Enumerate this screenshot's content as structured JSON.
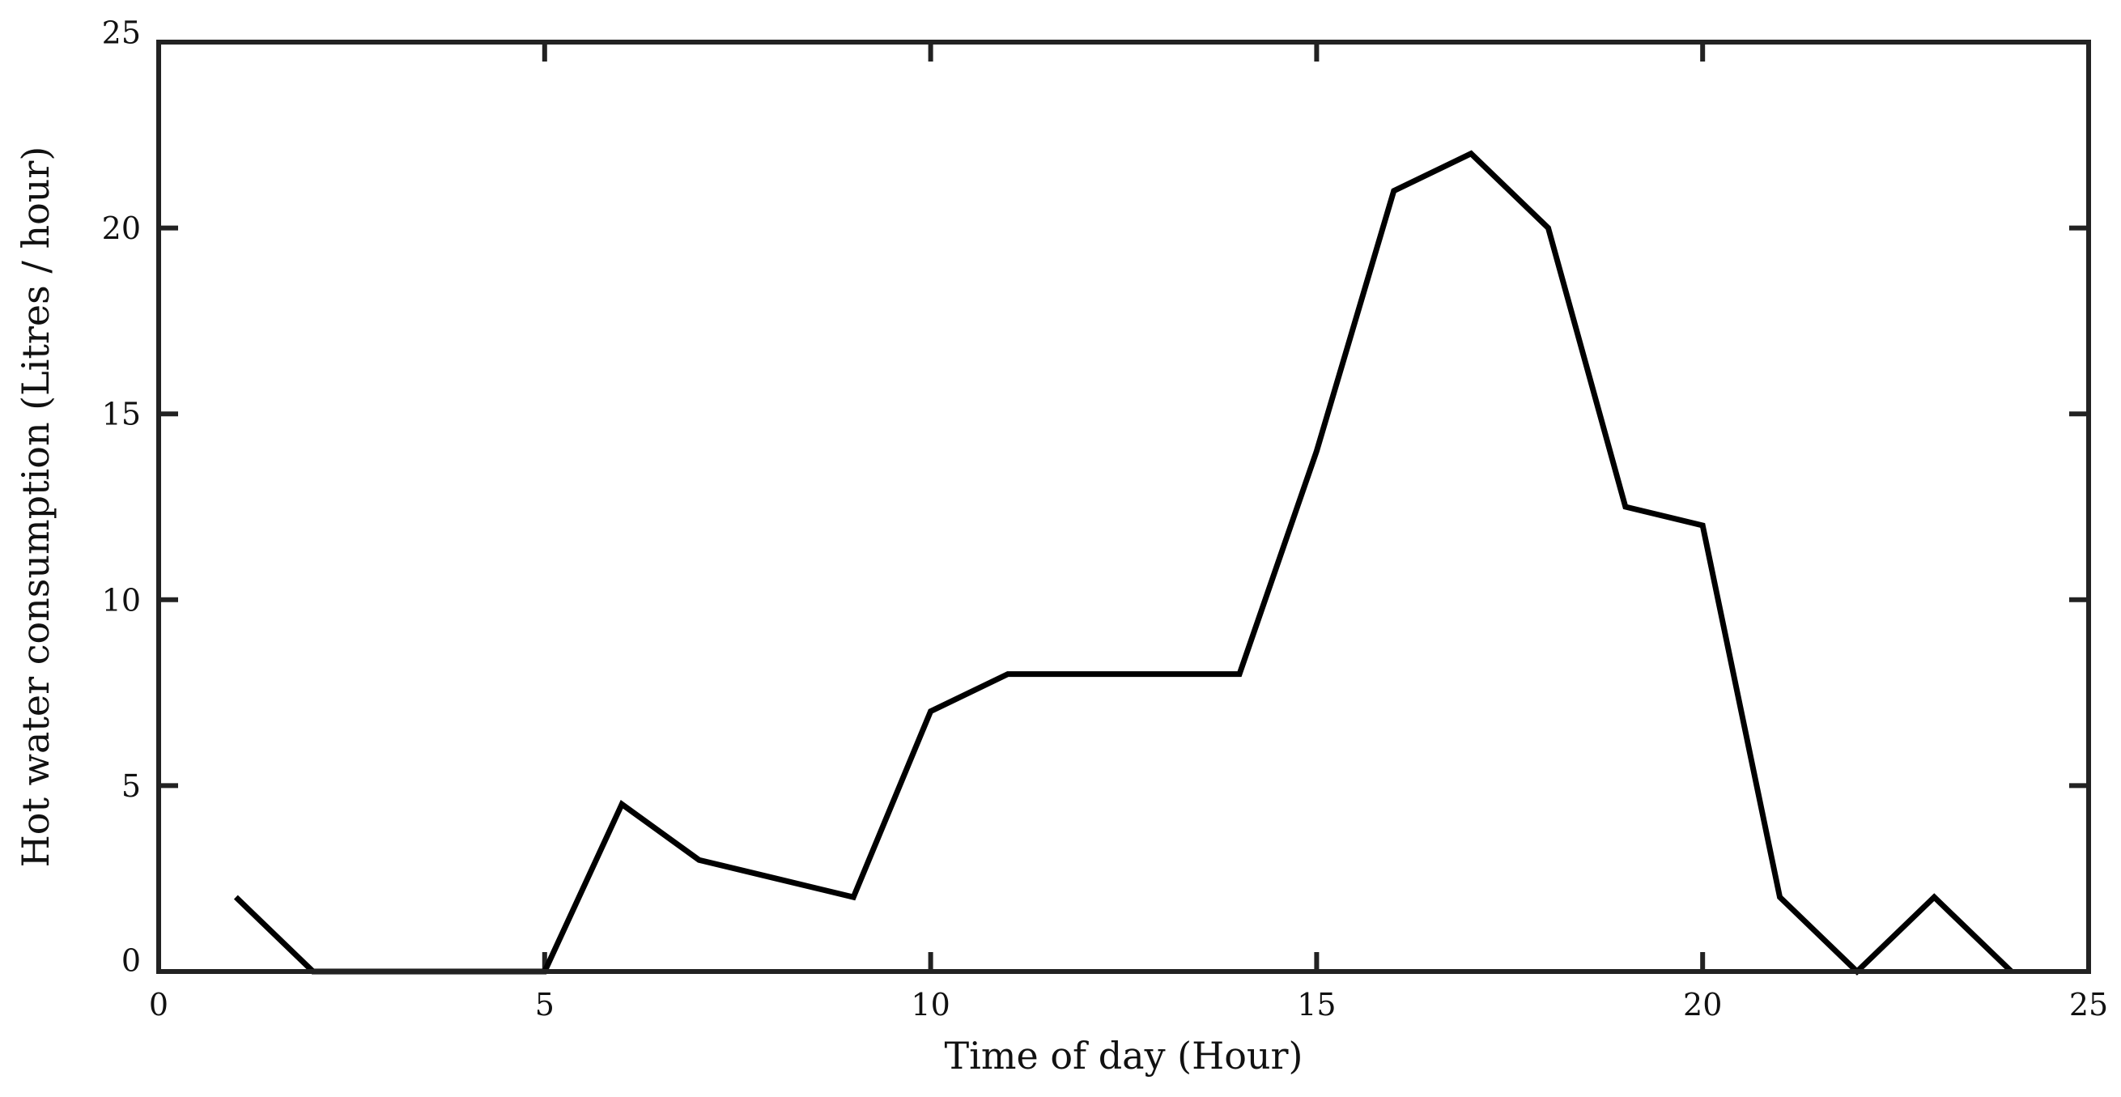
{
  "chart_data": {
    "type": "line",
    "title": "",
    "xlabel": "Time of day (Hour)",
    "ylabel": "Hot water consumption (Litres / hour)",
    "xlim": [
      0,
      25
    ],
    "ylim": [
      0,
      25
    ],
    "xticks": [
      "0",
      "5",
      "10",
      "15",
      "20",
      "25"
    ],
    "yticks": [
      "0",
      "5",
      "10",
      "15",
      "20",
      "25"
    ],
    "grid": false,
    "line_color": "#000000",
    "series": [
      {
        "x": [
          1,
          2,
          3,
          4,
          5,
          6,
          7,
          8,
          9,
          10,
          11,
          12,
          13,
          14,
          15,
          16,
          17,
          18,
          19,
          20,
          21,
          22,
          23,
          24
        ],
        "y": [
          2,
          0,
          0,
          0,
          0,
          4.5,
          3,
          2.5,
          2,
          7,
          8,
          8,
          8,
          8,
          14,
          21,
          22,
          20,
          12.5,
          12,
          2,
          0,
          2,
          0
        ]
      }
    ]
  }
}
